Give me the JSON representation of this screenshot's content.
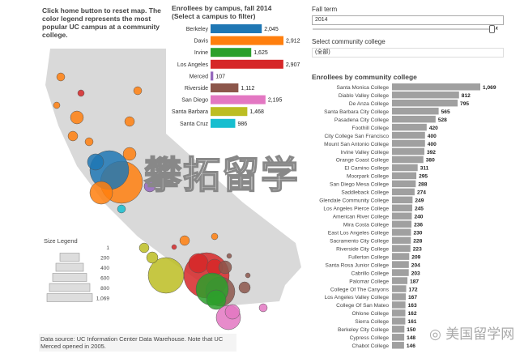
{
  "note": "Click home button to reset map. The color legend represents the most popular UC campus at a community college.",
  "controls": {
    "fall_term_label": "Fall term",
    "fall_term_value": "2014",
    "college_label": "Select community college",
    "college_value": "(全部)"
  },
  "size_legend": {
    "title": "Size Legend",
    "values": [
      "1",
      "200",
      "400",
      "600",
      "800",
      "1,069"
    ]
  },
  "data_source": "Data source: UC Information Center Data Warehouse. Note that UC Merced opened in 2005.",
  "watermark": "攀拓留学",
  "watermark2": "美国留学网",
  "chart_data": [
    {
      "type": "bar",
      "orientation": "horizontal",
      "title": "Enrollees by campus, fall 2014\n(Select a campus to filter)",
      "categories": [
        "Berkeley",
        "Davis",
        "Irvine",
        "Los Angeles",
        "Merced",
        "Riverside",
        "San Diego",
        "Santa Barbara",
        "Santa Cruz"
      ],
      "values": [
        2045,
        2912,
        1625,
        2907,
        107,
        1112,
        2195,
        1468,
        986
      ],
      "labels": [
        "2,045",
        "2,912",
        "1,625",
        "2,907",
        "107",
        "1,112",
        "2,195",
        "1,468",
        "986"
      ],
      "colors": [
        "#1f77b4",
        "#ff7f0e",
        "#2ca02c",
        "#d62728",
        "#9467bd",
        "#8c564b",
        "#e377c2",
        "#bcbd22",
        "#17becf"
      ]
    },
    {
      "type": "bar",
      "orientation": "horizontal",
      "title": "Enrollees by community college",
      "color": "#a0a0a0",
      "categories": [
        "Santa Monica College",
        "Diablo Valley College",
        "De Anza College",
        "Santa Barbara City College",
        "Pasadena City College",
        "Foothill College",
        "City College San Francisco",
        "Mount San Antonio College",
        "Irvine Valley College",
        "Orange Coast College",
        "El Camino College",
        "Moorpark College",
        "San Diego Mesa College",
        "Saddleback College",
        "Glendale Community College",
        "Los Angeles Pierce College",
        "American River College",
        "Mira Costa College",
        "East Los Angeles College",
        "Sacramento City College",
        "Riverside City College",
        "Fullerton College",
        "Santa Rosa Junior College",
        "Cabrillo College",
        "Palomar College",
        "College Of The Canyons",
        "Los Angeles Valley College",
        "College Of San Mateo",
        "Ohlone College",
        "Sierra College",
        "Berkeley City College",
        "Cypress College",
        "Chabot College"
      ],
      "values": [
        1069,
        812,
        795,
        565,
        528,
        420,
        400,
        400,
        392,
        380,
        311,
        295,
        288,
        274,
        249,
        245,
        240,
        236,
        230,
        228,
        223,
        209,
        204,
        203,
        187,
        172,
        167,
        163,
        162,
        161,
        150,
        148,
        146
      ],
      "labels": [
        "1,069",
        "812",
        "795",
        "565",
        "528",
        "420",
        "400",
        "400",
        "392",
        "380",
        "311",
        "295",
        "288",
        "274",
        "249",
        "245",
        "240",
        "236",
        "230",
        "228",
        "223",
        "209",
        "204",
        "203",
        "187",
        "172",
        "167",
        "163",
        "162",
        "161",
        "150",
        "148",
        "146"
      ]
    }
  ]
}
